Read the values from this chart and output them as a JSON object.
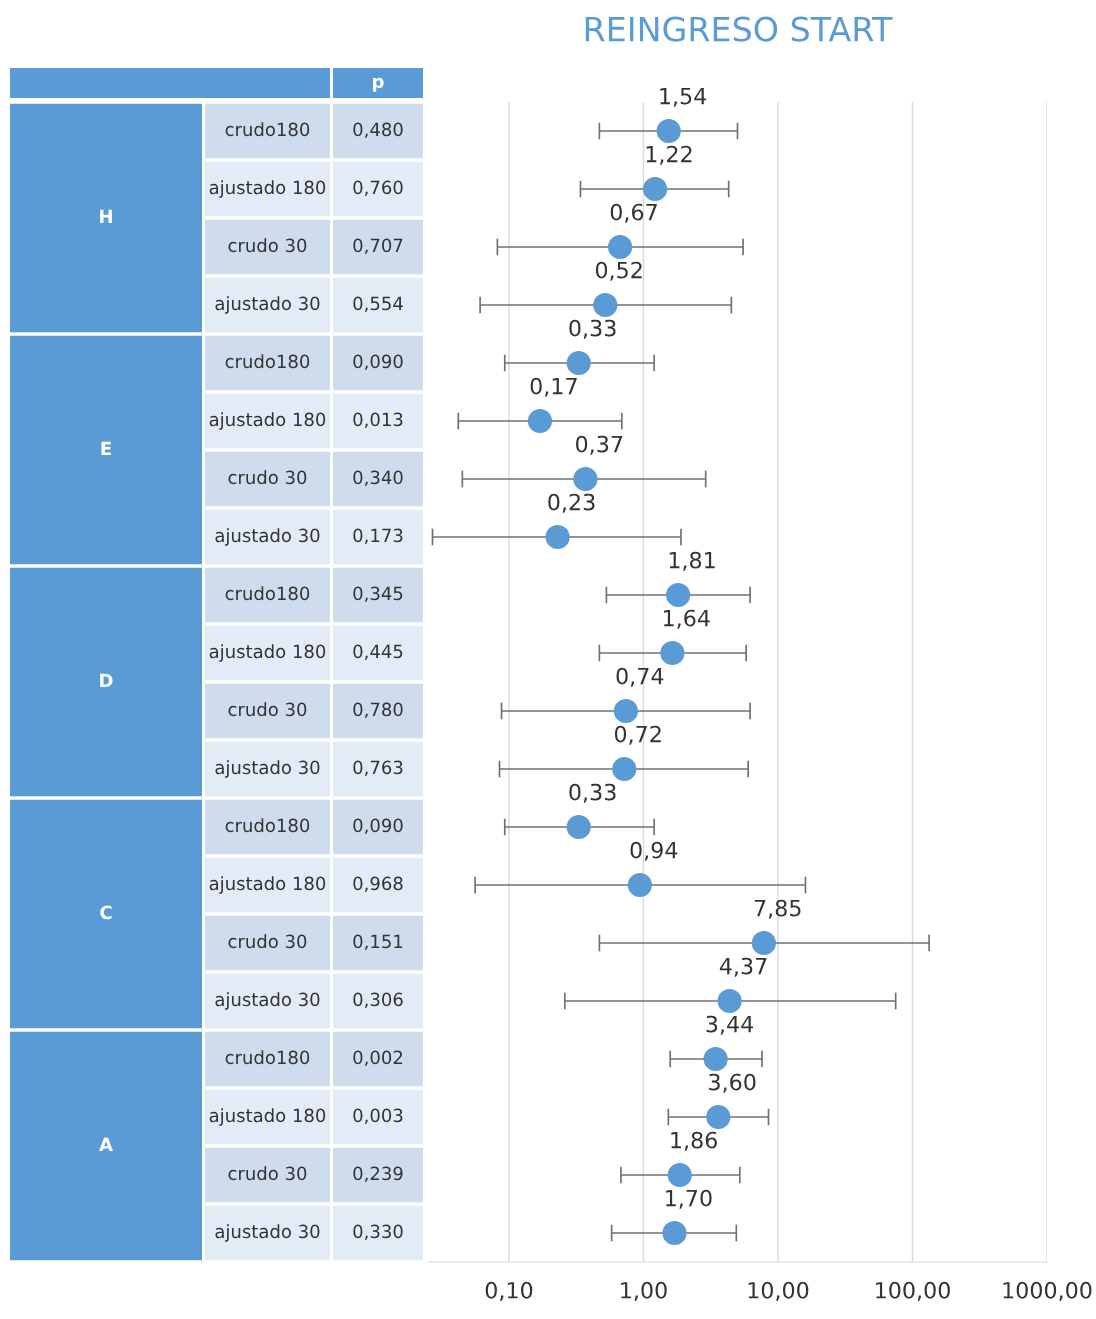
{
  "chart_data": {
    "type": "scatter",
    "orientation": "horizontal",
    "title": "REINGRESO START",
    "categories": [
      "crudo180",
      "ajustado 180",
      "crudo 30",
      "ajustado 30",
      "crudo180",
      "ajustado 180",
      "crudo 30",
      "ajustado 30",
      "crudo180",
      "ajustado 180",
      "crudo 30",
      "ajustado 30",
      "crudo180",
      "ajustado 180",
      "crudo 30",
      "ajustado 30",
      "crudo180",
      "ajustado 180",
      "crudo 30",
      "ajustado 30"
    ],
    "values": [
      1.54,
      1.22,
      0.67,
      0.52,
      0.33,
      0.17,
      0.37,
      0.23,
      1.81,
      1.64,
      0.74,
      0.72,
      0.33,
      0.94,
      7.85,
      4.37,
      3.44,
      3.6,
      1.86,
      1.7
    ],
    "value_labels": [
      "1,54",
      "1,22",
      "0,67",
      "0,52",
      "0,33",
      "0,17",
      "0,37",
      "0,23",
      "1,81",
      "1,64",
      "0,74",
      "0,72",
      "0,33",
      "0,94",
      "7,85",
      "4,37",
      "3,44",
      "3,60",
      "1,86",
      "1,70"
    ],
    "errors": [
      [
        0.47,
        5.0
      ],
      [
        0.34,
        4.3
      ],
      [
        0.082,
        5.5
      ],
      [
        0.061,
        4.5
      ],
      [
        0.093,
        1.2
      ],
      [
        0.042,
        0.69
      ],
      [
        0.045,
        2.9
      ],
      [
        0.027,
        1.9
      ],
      [
        0.53,
        6.2
      ],
      [
        0.47,
        5.8
      ],
      [
        0.088,
        6.2
      ],
      [
        0.085,
        6.0
      ],
      [
        0.093,
        1.2
      ],
      [
        0.056,
        16
      ],
      [
        0.47,
        133
      ],
      [
        0.26,
        75
      ],
      [
        1.58,
        7.6
      ],
      [
        1.53,
        8.5
      ],
      [
        0.68,
        5.2
      ],
      [
        0.58,
        4.9
      ]
    ],
    "color": "#5b9bd5",
    "marker": "circle",
    "log": "x",
    "grid": "x",
    "xlim": [
      0.025,
      1000
    ],
    "xticks": [
      {
        "value": 0.1,
        "label": "0,10"
      },
      {
        "value": 1,
        "label": "1,00"
      },
      {
        "value": 10,
        "label": "10,00"
      },
      {
        "value": 100,
        "label": "100,00"
      },
      {
        "value": 1000,
        "label": "1000,00"
      }
    ],
    "annotations": [
      "p",
      "0,480",
      "0,760",
      "0,707",
      "0,554",
      "0,090",
      "0,013",
      "0,340",
      "0,173",
      "0,345",
      "0,445",
      "0,780",
      "0,763",
      "0,090",
      "0,968",
      "0,151",
      "0,306",
      "0,002",
      "0,003",
      "0,239",
      "0,330",
      "H",
      "E",
      "D",
      "C",
      "A"
    ]
  }
}
